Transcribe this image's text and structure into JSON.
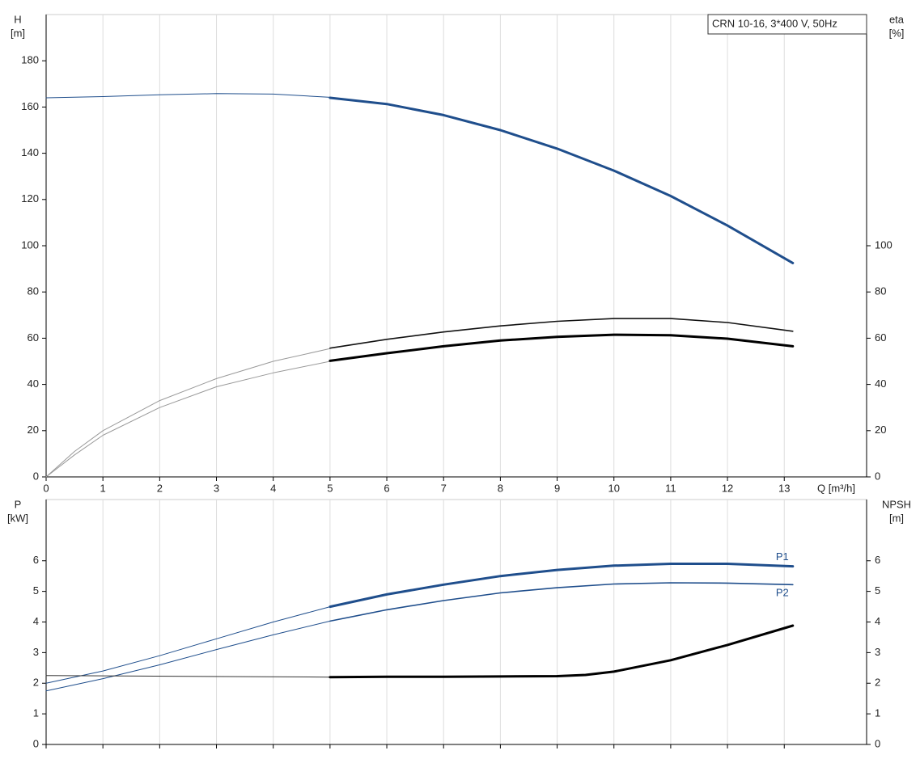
{
  "chart_data": [
    {
      "type": "line",
      "annotation": "CRN 10-16, 3*400 V, 50Hz",
      "y_label": [
        "H",
        "[m]"
      ],
      "y2_label": [
        "eta",
        "[%]"
      ],
      "x_label": "Q [m³/h]",
      "xlim": [
        0,
        14.45
      ],
      "xticks": [
        0,
        1,
        2,
        3,
        4,
        5,
        6,
        7,
        8,
        9,
        10,
        11,
        12,
        13
      ],
      "ylim": [
        0,
        200
      ],
      "yticks": [
        0,
        20,
        40,
        60,
        80,
        100,
        120,
        140,
        160,
        180
      ],
      "y2lim": [
        0,
        200
      ],
      "y2ticks": [
        0,
        20,
        40,
        60,
        80,
        100
      ],
      "grid": true,
      "series": [
        {
          "color": "#1f4e8c",
          "width": 1,
          "x": [
            0,
            1,
            2,
            3,
            4,
            5
          ],
          "values": [
            164,
            164.5,
            165.3,
            165.8,
            165.6,
            164.2
          ]
        },
        {
          "color": "#1f4e8c",
          "width": 3,
          "x": [
            5,
            6,
            7,
            8,
            9,
            10,
            11,
            12,
            13.15
          ],
          "values": [
            164,
            161.3,
            156.5,
            150,
            142,
            132.5,
            121.5,
            108.7,
            92.5
          ]
        },
        {
          "color": "#999999",
          "width": 1,
          "axis": "y2",
          "x": [
            0,
            0.5,
            1,
            2,
            3,
            4,
            5
          ],
          "values": [
            0,
            11,
            20,
            33,
            42.5,
            50,
            55.5
          ]
        },
        {
          "color": "#111111",
          "width": 1.6,
          "axis": "y2",
          "x": [
            5,
            6,
            7,
            8,
            9,
            10,
            11,
            12,
            13.15
          ],
          "values": [
            55.7,
            59.5,
            62.7,
            65.3,
            67.3,
            68.5,
            68.5,
            66.8,
            63
          ]
        },
        {
          "color": "#999999",
          "width": 1,
          "axis": "y2",
          "x": [
            0,
            0.5,
            1,
            2,
            3,
            4,
            5
          ],
          "values": [
            0,
            9.5,
            18,
            30,
            39,
            45,
            50
          ]
        },
        {
          "color": "#000000",
          "width": 3,
          "axis": "y2",
          "x": [
            5,
            6,
            7,
            8,
            9,
            10,
            11,
            12,
            13.15
          ],
          "values": [
            50.2,
            53.5,
            56.5,
            59,
            60.6,
            61.5,
            61.3,
            59.8,
            56.5
          ]
        }
      ]
    },
    {
      "type": "line",
      "y_label": [
        "P",
        "[kW]"
      ],
      "y2_label": [
        "NPSH",
        "[m]"
      ],
      "xlim": [
        0,
        14.45
      ],
      "ylim": [
        0,
        8
      ],
      "yticks": [
        0,
        1,
        2,
        3,
        4,
        5,
        6
      ],
      "y2lim": [
        0,
        8
      ],
      "y2ticks": [
        0,
        1,
        2,
        3,
        4,
        5,
        6
      ],
      "series": [
        {
          "color": "#1f4e8c",
          "width": 1,
          "x": [
            0,
            1,
            2,
            3,
            4,
            5
          ],
          "values": [
            2.0,
            2.4,
            2.9,
            3.45,
            4.0,
            4.5
          ]
        },
        {
          "name": "P1",
          "color": "#1f4e8c",
          "width": 3,
          "x": [
            5,
            6,
            7,
            8,
            9,
            10,
            11,
            12,
            13.15
          ],
          "values": [
            4.5,
            4.9,
            5.22,
            5.5,
            5.7,
            5.84,
            5.9,
            5.9,
            5.82
          ]
        },
        {
          "color": "#1f4e8c",
          "width": 1,
          "x": [
            0,
            1,
            2,
            3,
            4,
            5
          ],
          "values": [
            1.75,
            2.15,
            2.6,
            3.1,
            3.58,
            4.03
          ]
        },
        {
          "name": "P2",
          "color": "#1f4e8c",
          "width": 1.6,
          "x": [
            5,
            6,
            7,
            8,
            9,
            10,
            11,
            12,
            13.15
          ],
          "values": [
            4.03,
            4.4,
            4.7,
            4.95,
            5.12,
            5.24,
            5.28,
            5.27,
            5.22
          ]
        },
        {
          "color": "#333333",
          "width": 1,
          "axis": "y2",
          "x": [
            0,
            5
          ],
          "values": [
            2.25,
            2.2
          ]
        },
        {
          "color": "#000000",
          "width": 3,
          "axis": "y2",
          "x": [
            5,
            6,
            7,
            8,
            9,
            9.5,
            10,
            11,
            12,
            13.15
          ],
          "values": [
            2.2,
            2.21,
            2.21,
            2.22,
            2.23,
            2.27,
            2.38,
            2.75,
            3.25,
            3.88
          ]
        }
      ]
    }
  ]
}
